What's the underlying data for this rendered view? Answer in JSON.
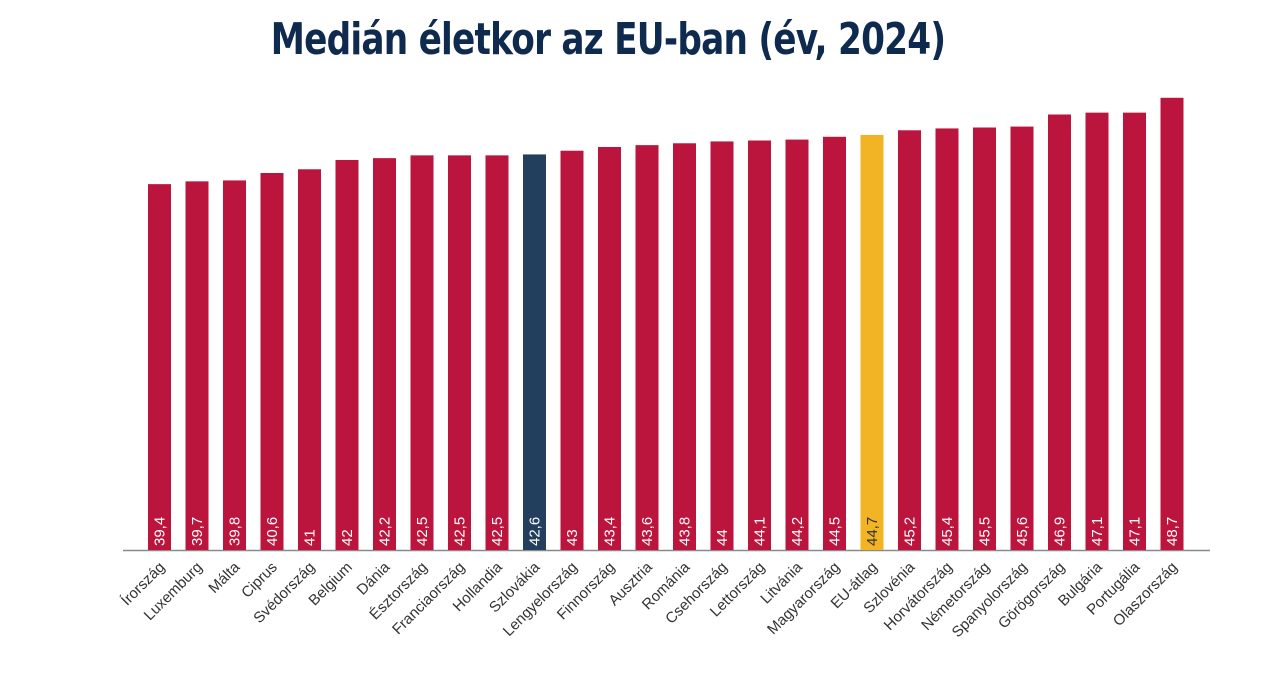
{
  "colors": {
    "title": "#0f2a4f",
    "bar": "#bb153d",
    "highlight_sk": "#233f5e",
    "highlight_eu": "#f2b324",
    "axis": "#8a8a8a",
    "label_dark": "#333333"
  },
  "chart_data": {
    "type": "bar",
    "title": "Medián életkor az EU-ban (év, 2024)",
    "xlabel": "",
    "ylabel": "",
    "ylim": [
      0,
      49
    ],
    "grid": false,
    "categories": [
      "Írország",
      "Luxemburg",
      "Málta",
      "Ciprus",
      "Svédország",
      "Belgium",
      "Dánia",
      "Észtország",
      "Franciaország",
      "Hollandia",
      "Szlovákia",
      "Lengyelország",
      "Finnország",
      "Ausztria",
      "Románia",
      "Csehország",
      "Lettország",
      "Litvánia",
      "Magyarország",
      "EU-átlag",
      "Szlovénia",
      "Horvátország",
      "Németország",
      "Spanyolország",
      "Görögország",
      "Bulgária",
      "Portugália",
      "Olaszország"
    ],
    "values": [
      39.4,
      39.7,
      39.8,
      40.6,
      41,
      42,
      42.2,
      42.5,
      42.5,
      42.5,
      42.6,
      43,
      43.4,
      43.6,
      43.8,
      44,
      44.1,
      44.2,
      44.5,
      44.7,
      45.2,
      45.4,
      45.5,
      45.6,
      46.9,
      47.1,
      47.1,
      48.7
    ],
    "value_labels": [
      "39,4",
      "39,7",
      "39,8",
      "40,6",
      "41",
      "42",
      "42,2",
      "42,5",
      "42,5",
      "42,5",
      "42,6",
      "43",
      "43,4",
      "43,6",
      "43,8",
      "44",
      "44,1",
      "44,2",
      "44,5",
      "44,7",
      "45,2",
      "45,4",
      "45,5",
      "45,6",
      "46,9",
      "47,1",
      "47,1",
      "48,7"
    ],
    "highlights": {
      "Szlovákia": "highlight_sk",
      "EU-átlag": "highlight_eu"
    }
  }
}
